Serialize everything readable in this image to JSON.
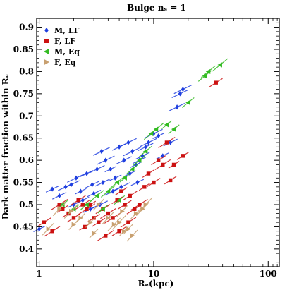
{
  "chart_data": {
    "type": "scatter",
    "title": "Bulge nₛ = 1",
    "xlabel": "Rₑ(kpc)",
    "ylabel": "Dark matter fraction within Rₑ",
    "xscale": "log",
    "xlim": [
      0.95,
      125
    ],
    "ylim": [
      0.36,
      0.92
    ],
    "xticks": [
      1,
      10,
      100
    ],
    "xtick_labels": [
      "1",
      "10",
      "100"
    ],
    "yticks": [
      0.4,
      0.45,
      0.5,
      0.55,
      0.6,
      0.65,
      0.7,
      0.75,
      0.8,
      0.85,
      0.9
    ],
    "ytick_labels": [
      "0.4",
      "0.45",
      "0.5",
      "0.55",
      "0.6",
      "0.65",
      "0.7",
      "0.75",
      "0.8",
      "0.85",
      "0.9"
    ],
    "legend_position": "top-left",
    "series": [
      {
        "name": "M, LF",
        "marker": "diamond",
        "color": "#1f3fe0",
        "points": [
          [
            1.0,
            0.445
          ],
          [
            1.3,
            0.535
          ],
          [
            1.5,
            0.52
          ],
          [
            1.7,
            0.54
          ],
          [
            1.9,
            0.545
          ],
          [
            2.1,
            0.56
          ],
          [
            2.3,
            0.53
          ],
          [
            2.6,
            0.57
          ],
          [
            2.9,
            0.545
          ],
          [
            3.2,
            0.58
          ],
          [
            3.5,
            0.62
          ],
          [
            3.8,
            0.6
          ],
          [
            4.2,
            0.58
          ],
          [
            4.6,
            0.56
          ],
          [
            5.0,
            0.63
          ],
          [
            5.5,
            0.6
          ],
          [
            6.0,
            0.64
          ],
          [
            6.5,
            0.62
          ],
          [
            7.0,
            0.59
          ],
          [
            7.5,
            0.6
          ],
          [
            8.0,
            0.61
          ],
          [
            8.5,
            0.63
          ],
          [
            9.0,
            0.64
          ],
          [
            10.0,
            0.66
          ],
          [
            11.0,
            0.655
          ],
          [
            12.0,
            0.61
          ],
          [
            14.0,
            0.64
          ],
          [
            16.0,
            0.72
          ],
          [
            17.0,
            0.75
          ],
          [
            18.0,
            0.76
          ],
          [
            2.0,
            0.5
          ],
          [
            2.4,
            0.51
          ],
          [
            3.0,
            0.525
          ],
          [
            3.6,
            0.55
          ],
          [
            4.4,
            0.53
          ],
          [
            5.2,
            0.54
          ],
          [
            6.2,
            0.57
          ],
          [
            7.2,
            0.55
          ],
          [
            2.8,
            0.49
          ],
          [
            3.4,
            0.5
          ]
        ]
      },
      {
        "name": "F, LF",
        "marker": "square",
        "color": "#cc1111",
        "points": [
          [
            1.1,
            0.46
          ],
          [
            1.3,
            0.44
          ],
          [
            1.5,
            0.5
          ],
          [
            1.6,
            0.49
          ],
          [
            1.8,
            0.48
          ],
          [
            2.0,
            0.47
          ],
          [
            2.2,
            0.51
          ],
          [
            2.4,
            0.5
          ],
          [
            2.6,
            0.49
          ],
          [
            2.8,
            0.5
          ],
          [
            3.0,
            0.47
          ],
          [
            3.3,
            0.46
          ],
          [
            3.6,
            0.49
          ],
          [
            4.0,
            0.48
          ],
          [
            4.4,
            0.47
          ],
          [
            4.8,
            0.51
          ],
          [
            5.2,
            0.53
          ],
          [
            5.6,
            0.5
          ],
          [
            6.2,
            0.52
          ],
          [
            6.8,
            0.49
          ],
          [
            7.5,
            0.5
          ],
          [
            8.3,
            0.54
          ],
          [
            9.0,
            0.57
          ],
          [
            10.0,
            0.55
          ],
          [
            11.0,
            0.6
          ],
          [
            12.0,
            0.59
          ],
          [
            13.0,
            0.64
          ],
          [
            15.0,
            0.59
          ],
          [
            18.0,
            0.61
          ],
          [
            35.0,
            0.775
          ],
          [
            5.0,
            0.44
          ],
          [
            6.0,
            0.46
          ],
          [
            3.8,
            0.43
          ],
          [
            2.5,
            0.45
          ],
          [
            14.0,
            0.555
          ]
        ]
      },
      {
        "name": "M, Eq",
        "marker": "triangle-left",
        "color": "#33bb22",
        "points": [
          [
            1.6,
            0.5
          ],
          [
            2.0,
            0.49
          ],
          [
            2.6,
            0.5
          ],
          [
            3.2,
            0.52
          ],
          [
            4.0,
            0.53
          ],
          [
            4.8,
            0.55
          ],
          [
            5.6,
            0.56
          ],
          [
            6.5,
            0.58
          ],
          [
            7.5,
            0.6
          ],
          [
            8.5,
            0.62
          ],
          [
            9.5,
            0.66
          ],
          [
            10.5,
            0.67
          ],
          [
            13.0,
            0.68
          ],
          [
            15.0,
            0.67
          ],
          [
            20.0,
            0.73
          ],
          [
            28.0,
            0.79
          ],
          [
            30.0,
            0.8
          ],
          [
            38.0,
            0.815
          ],
          [
            3.6,
            0.49
          ],
          [
            5.0,
            0.51
          ]
        ]
      },
      {
        "name": "F, Eq",
        "marker": "triangle-right",
        "color": "#c8a070",
        "points": [
          [
            1.2,
            0.445
          ],
          [
            1.5,
            0.49
          ],
          [
            1.9,
            0.485
          ],
          [
            2.3,
            0.47
          ],
          [
            2.8,
            0.46
          ],
          [
            3.3,
            0.5
          ],
          [
            4.0,
            0.47
          ],
          [
            4.5,
            0.455
          ],
          [
            5.0,
            0.46
          ],
          [
            5.5,
            0.44
          ],
          [
            6.0,
            0.445
          ],
          [
            6.5,
            0.43
          ],
          [
            7.0,
            0.48
          ],
          [
            8.0,
            0.49
          ],
          [
            8.5,
            0.5
          ],
          [
            3.0,
            0.435
          ],
          [
            2.0,
            0.455
          ],
          [
            5.3,
            0.485
          ]
        ]
      }
    ]
  }
}
